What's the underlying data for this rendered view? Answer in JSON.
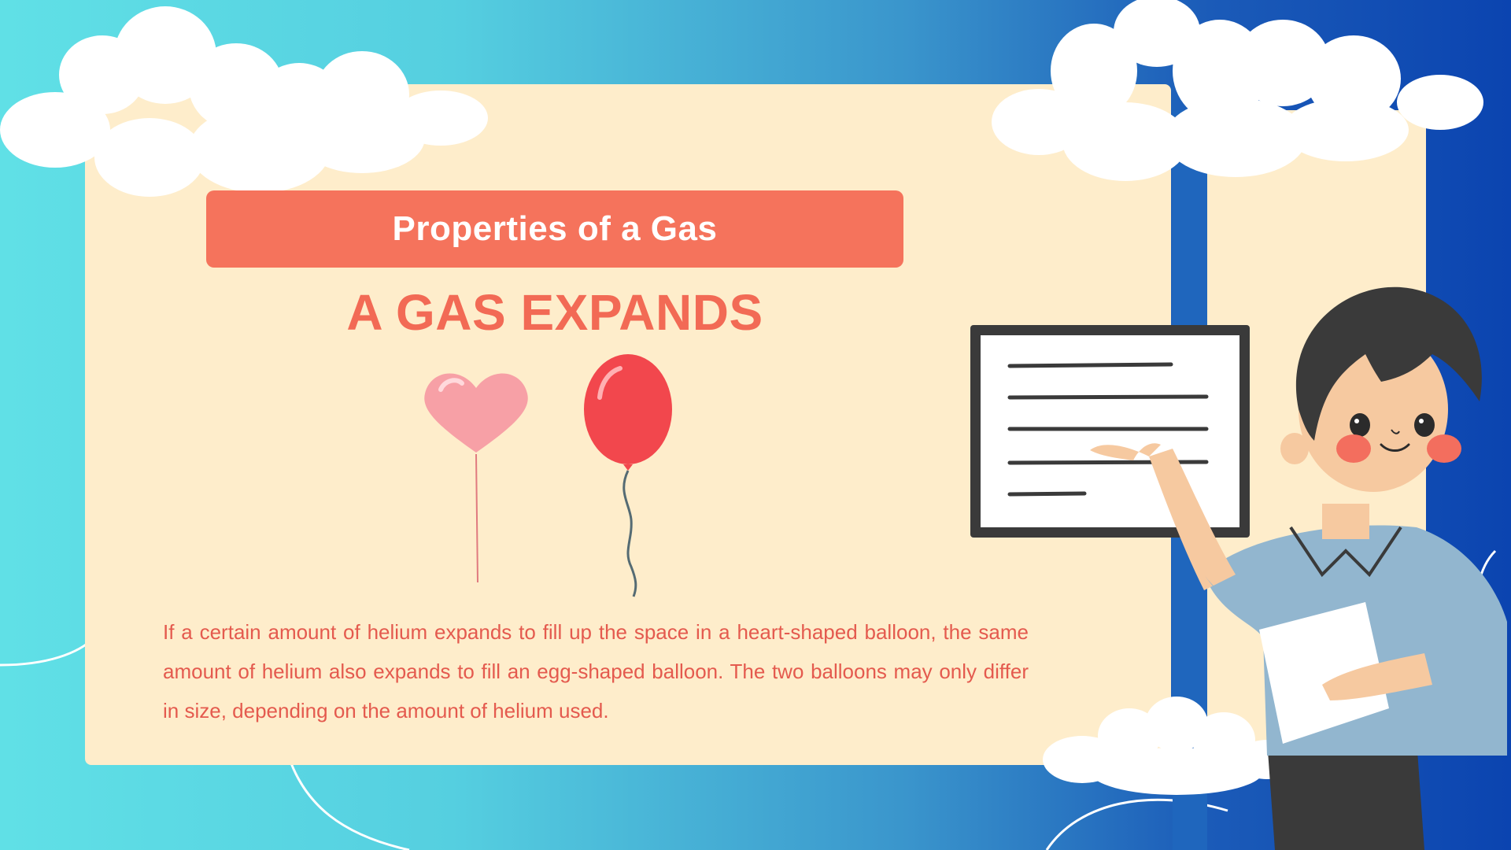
{
  "slide": {
    "banner_title": "Properties of a Gas",
    "headline": "A GAS EXPANDS",
    "body": "If a certain amount of helium expands to fill up the space in a heart-shaped balloon, the same amount of helium also expands to fill an egg-shaped balloon. The two balloons may only differ in size, depending on the amount of helium used."
  },
  "colors": {
    "banner": "#f5735c",
    "headline": "#f26a55",
    "card": "#feedcb",
    "heart_balloon": "#f7a0a6",
    "round_balloon": "#f2474d"
  },
  "icons": [
    "cloud-icon",
    "heart-balloon-icon",
    "round-balloon-icon",
    "whiteboard-icon",
    "teacher-character-icon"
  ]
}
